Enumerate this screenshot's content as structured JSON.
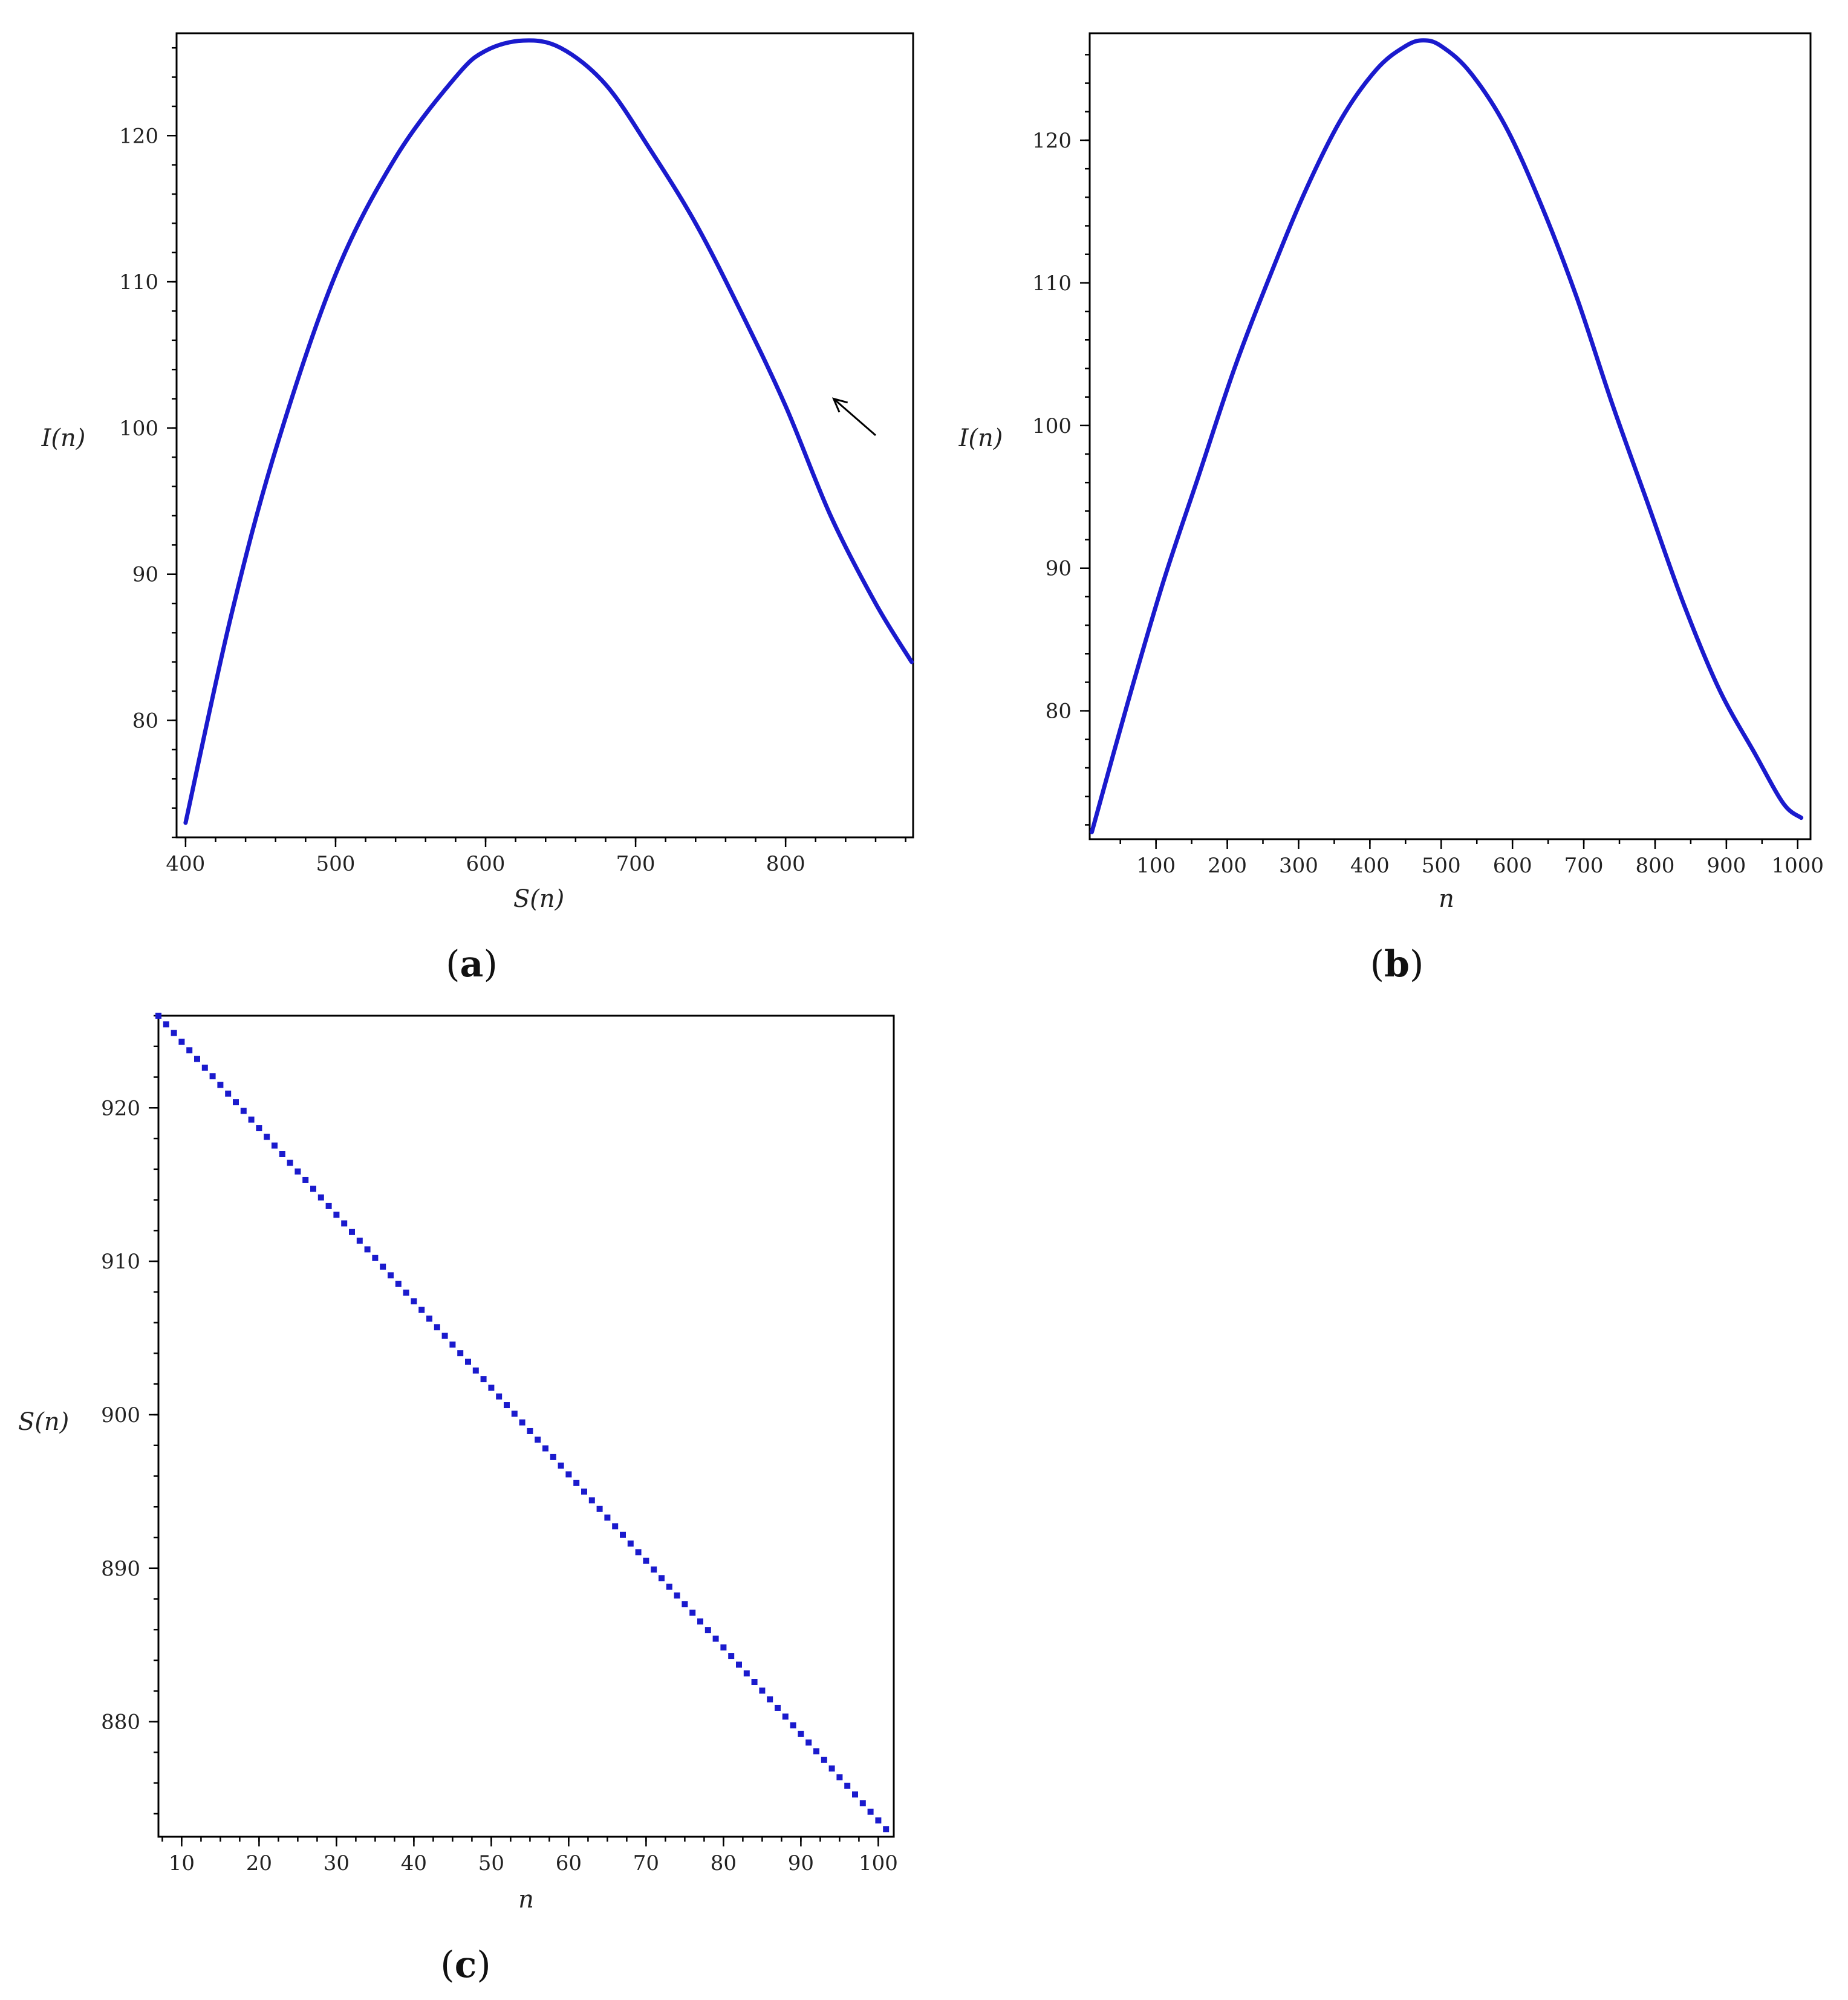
{
  "chart_data": [
    {
      "id": "a",
      "type": "line",
      "panel_label": "a",
      "xlabel": "S(n)",
      "ylabel": "I(n)",
      "xlim": [
        394,
        885
      ],
      "ylim": [
        72,
        127
      ],
      "x_ticks": [
        400,
        500,
        600,
        700,
        800
      ],
      "y_ticks": [
        80,
        90,
        100,
        110,
        120
      ],
      "x_minor_step": 20,
      "y_minor_step": 2,
      "grid": false,
      "legend": "none",
      "color": "#1a1acd",
      "points": [
        [
          400,
          73
        ],
        [
          430,
          87
        ],
        [
          460,
          98.5
        ],
        [
          500,
          110.5
        ],
        [
          540,
          118.5
        ],
        [
          580,
          124
        ],
        [
          600,
          125.8
        ],
        [
          625,
          126.5
        ],
        [
          650,
          126
        ],
        [
          680,
          123.5
        ],
        [
          710,
          119
        ],
        [
          740,
          114
        ],
        [
          770,
          108
        ],
        [
          800,
          101.5
        ],
        [
          830,
          94
        ],
        [
          860,
          88
        ],
        [
          884,
          84
        ]
      ],
      "annotation": {
        "type": "arrow",
        "direction": "up-left",
        "tip": [
          832,
          102
        ],
        "tail": [
          860,
          99.5
        ]
      }
    },
    {
      "id": "b",
      "type": "line",
      "panel_label": "b",
      "xlabel": "n",
      "ylabel": "I(n)",
      "xlim": [
        7,
        1018
      ],
      "ylim": [
        71,
        127.5
      ],
      "x_ticks": [
        100,
        200,
        300,
        400,
        500,
        600,
        700,
        800,
        900,
        1000
      ],
      "y_ticks": [
        80,
        90,
        100,
        110,
        120
      ],
      "x_minor_step": 50,
      "y_minor_step": 2,
      "grid": false,
      "legend": "none",
      "color": "#1a1acd",
      "points": [
        [
          10,
          71.5
        ],
        [
          60,
          80.5
        ],
        [
          110,
          89
        ],
        [
          160,
          96.5
        ],
        [
          210,
          104
        ],
        [
          260,
          110.5
        ],
        [
          310,
          116.5
        ],
        [
          360,
          121.5
        ],
        [
          410,
          125
        ],
        [
          450,
          126.6
        ],
        [
          475,
          127
        ],
        [
          500,
          126.6
        ],
        [
          540,
          124.8
        ],
        [
          590,
          121
        ],
        [
          640,
          115.5
        ],
        [
          690,
          109
        ],
        [
          740,
          101.5
        ],
        [
          790,
          94.5
        ],
        [
          840,
          87.5
        ],
        [
          890,
          81.5
        ],
        [
          940,
          77
        ],
        [
          980,
          73.5
        ],
        [
          1005,
          72.5
        ]
      ]
    },
    {
      "id": "c",
      "type": "scatter",
      "panel_label": "c",
      "xlabel": "n",
      "ylabel": "S(n)",
      "xlim": [
        7,
        102
      ],
      "ylim": [
        872.5,
        926
      ],
      "x_ticks": [
        10,
        20,
        30,
        40,
        50,
        60,
        70,
        80,
        90,
        100
      ],
      "y_ticks": [
        880,
        890,
        900,
        910,
        920
      ],
      "x_minor_step": 2.5,
      "y_minor_step": 2,
      "grid": false,
      "legend": "none",
      "color": "#1a1acd",
      "series": [
        {
          "x_start": 7,
          "x_end": 101,
          "y_start": 926,
          "y_end": 873
        }
      ]
    }
  ]
}
